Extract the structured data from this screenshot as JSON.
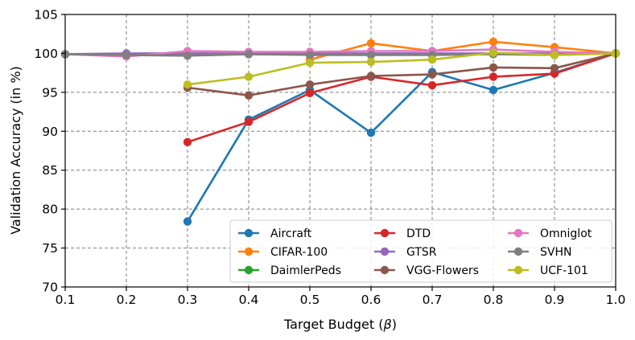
{
  "chart_data": {
    "type": "line",
    "xlabel": "Target Budget (",
    "xlabel_symbol": "β",
    "xlabel_close": ")",
    "ylabel": "Validation Accuracy (in %)",
    "xlim": [
      0.1,
      1.0
    ],
    "ylim": [
      70,
      105
    ],
    "x_ticks": [
      "0.1",
      "0.2",
      "0.3",
      "0.4",
      "0.5",
      "0.6",
      "0.7",
      "0.8",
      "0.9",
      "1.0"
    ],
    "x_tick_values": [
      0.1,
      0.2,
      0.3,
      0.4,
      0.5,
      0.6,
      0.7,
      0.8,
      0.9,
      1.0
    ],
    "y_ticks": [
      "70",
      "75",
      "80",
      "85",
      "90",
      "95",
      "100",
      "105"
    ],
    "y_tick_values": [
      70,
      75,
      80,
      85,
      90,
      95,
      100,
      105
    ],
    "grid": true,
    "legend_position": "bottom-right",
    "legend_columns": 3,
    "series": [
      {
        "name": "Aircraft",
        "color": "#1f77b4",
        "x": [
          0.3,
          0.4,
          0.5,
          0.6,
          0.7,
          0.8,
          0.9,
          1.0
        ],
        "values": [
          78.4,
          91.5,
          95.3,
          89.8,
          97.6,
          95.3,
          97.5,
          100.0
        ]
      },
      {
        "name": "CIFAR-100",
        "color": "#ff7f0e",
        "x": [
          0.5,
          0.6,
          0.7,
          0.8,
          0.9,
          1.0
        ],
        "values": [
          99.2,
          101.3,
          100.3,
          101.5,
          100.8,
          100.0
        ]
      },
      {
        "name": "DaimlerPeds",
        "color": "#2ca02c",
        "x": [
          0.1,
          0.2,
          0.3,
          0.4,
          0.5,
          0.6,
          0.7,
          0.8,
          0.9,
          1.0
        ],
        "values": [
          99.9,
          99.9,
          99.8,
          99.9,
          99.9,
          99.9,
          99.9,
          100.0,
          99.9,
          100.0
        ]
      },
      {
        "name": "DTD",
        "color": "#d62728",
        "x": [
          0.3,
          0.4,
          0.5,
          0.6,
          0.7,
          0.8,
          0.9,
          1.0
        ],
        "values": [
          88.6,
          91.2,
          94.9,
          97.0,
          95.9,
          97.0,
          97.4,
          100.0
        ]
      },
      {
        "name": "GTSR",
        "color": "#9467bd",
        "x": [
          0.1,
          0.2,
          0.3,
          0.4,
          0.5,
          0.6,
          0.7,
          0.8,
          0.9,
          1.0
        ],
        "values": [
          99.9,
          100.0,
          100.0,
          100.0,
          100.0,
          100.0,
          100.0,
          100.0,
          100.0,
          100.0
        ]
      },
      {
        "name": "VGG-Flowers",
        "color": "#8c564b",
        "x": [
          0.3,
          0.4,
          0.5,
          0.6,
          0.7,
          0.8,
          0.9,
          1.0
        ],
        "values": [
          95.6,
          94.6,
          96.0,
          97.1,
          97.3,
          98.2,
          98.1,
          100.0
        ]
      },
      {
        "name": "Omniglot",
        "color": "#e377c2",
        "x": [
          0.1,
          0.2,
          0.3,
          0.4,
          0.5,
          0.6,
          0.7,
          0.8,
          0.9,
          1.0
        ],
        "values": [
          99.9,
          99.6,
          100.3,
          100.2,
          100.2,
          100.3,
          100.3,
          100.5,
          100.2,
          100.0
        ]
      },
      {
        "name": "SVHN",
        "color": "#7f7f7f",
        "x": [
          0.1,
          0.2,
          0.3,
          0.4,
          0.5,
          0.6,
          0.7,
          0.8,
          0.9,
          1.0
        ],
        "values": [
          99.9,
          99.8,
          99.7,
          99.9,
          99.8,
          99.8,
          99.8,
          99.9,
          99.8,
          100.0
        ]
      },
      {
        "name": "UCF-101",
        "color": "#bcbd22",
        "x": [
          0.3,
          0.4,
          0.5,
          0.6,
          0.7,
          0.8,
          0.9,
          1.0
        ],
        "values": [
          96.0,
          97.0,
          98.8,
          98.9,
          99.2,
          100.1,
          99.8,
          100.0
        ]
      }
    ]
  }
}
